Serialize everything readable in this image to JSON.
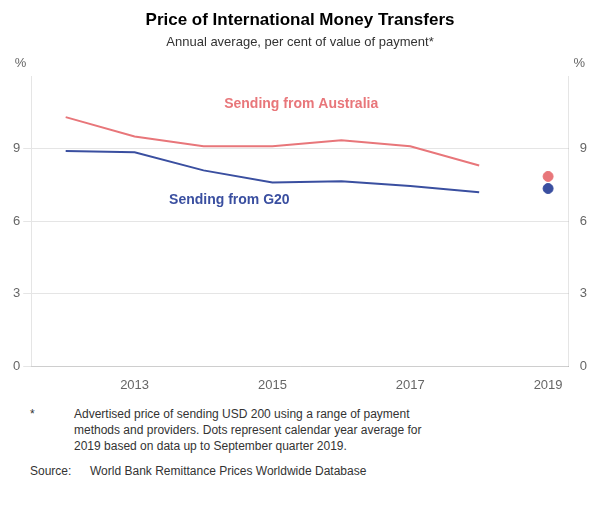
{
  "chart_data": {
    "type": "line",
    "title": "Price of International Money Transfers",
    "subtitle": "Annual average, per cent of value of payment*",
    "y_label": "%",
    "y2_label": "%",
    "x": [
      2012,
      2013,
      2014,
      2015,
      2016,
      2017,
      2018
    ],
    "series": [
      {
        "name": "Sending from Australia",
        "color": "#e8767a",
        "values": [
          10.3,
          9.5,
          9.1,
          9.1,
          9.35,
          9.1,
          8.3
        ]
      },
      {
        "name": "Sending from G20",
        "color": "#3a4fa0",
        "values": [
          8.9,
          8.85,
          8.1,
          7.6,
          7.65,
          7.45,
          7.2
        ]
      }
    ],
    "dots": [
      {
        "x": 2019.0,
        "y": 7.85,
        "color": "#e8767a"
      },
      {
        "x": 2019.0,
        "y": 7.35,
        "color": "#3a4fa0"
      }
    ],
    "annotations": [
      {
        "text": "Sending from Australia",
        "x": 2014.3,
        "y": 10.55,
        "color": "#e8767a"
      },
      {
        "text": "Sending from G20",
        "x": 2013.5,
        "y": 6.6,
        "color": "#3a4fa0"
      }
    ],
    "xlim": [
      2011.5,
      2019.3
    ],
    "xticks": [
      2013,
      2015,
      2017,
      2019
    ],
    "ylim": [
      0,
      12
    ],
    "yticks": [
      0,
      3,
      6,
      9
    ],
    "y2lim": [
      0,
      12
    ],
    "y2ticks": [
      0,
      3,
      6,
      9
    ],
    "grid": true,
    "footnote_marker": "*",
    "footnote": "Advertised price of sending USD 200 using a range of payment\nmethods and providers. Dots represent calendar year average for\n2019 based on data up to September quarter 2019.",
    "source_label": "Source:",
    "source": "World Bank Remittance Prices Worldwide Database"
  }
}
